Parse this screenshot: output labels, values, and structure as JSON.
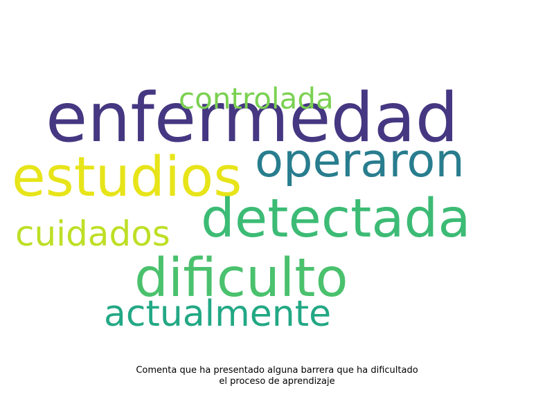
{
  "word_cloud": {
    "words": [
      {
        "text": "enfermedad",
        "color": "#453781"
      },
      {
        "text": "operaron",
        "color": "#287d8e"
      },
      {
        "text": "estudios",
        "color": "#e7e419"
      },
      {
        "text": "detectada",
        "color": "#3cbb75"
      },
      {
        "text": "controlada",
        "color": "#7ad151"
      },
      {
        "text": "cuidados",
        "color": "#bddf26"
      },
      {
        "text": "dificulto",
        "color": "#4ac16d"
      },
      {
        "text": "actualmente",
        "color": "#22a884"
      }
    ]
  },
  "caption": {
    "line1": "Comenta que ha presentado alguna barrera que ha dificultado",
    "line2": "el proceso de aprendizaje"
  }
}
